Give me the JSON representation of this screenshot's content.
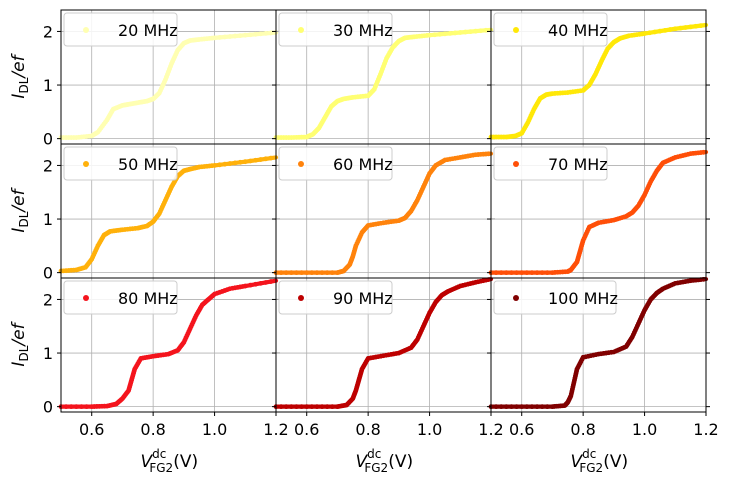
{
  "chart_data": {
    "type": "scatter",
    "layout": "3x3 grid of panels sharing axes",
    "ylabel": "I_DL/ef",
    "ylabel_main": "I",
    "ylabel_sub": "DL",
    "ylabel_tail": "/ef",
    "xlabel_main": "V",
    "xlabel_sup": "dc",
    "xlabel_sub": "FG2",
    "xlabel_tail": "(V)",
    "xlim": [
      0.5,
      1.2
    ],
    "ylim": [
      -0.1,
      2.4
    ],
    "xticks": [
      0.6,
      0.8,
      1.0
    ],
    "xtick_labels": [
      "0.6",
      "0.8",
      "1.0"
    ],
    "xend_label": "1.2",
    "yticks": [
      0,
      1,
      2
    ],
    "ytick_labels": [
      "0",
      "1",
      "2"
    ],
    "grid": true,
    "legend_position": "top-left of each panel",
    "panels": [
      {
        "label": "20 MHz",
        "color": "#ffffb2",
        "x": [
          0.5,
          0.55,
          0.6,
          0.62,
          0.65,
          0.67,
          0.7,
          0.72,
          0.75,
          0.78,
          0.8,
          0.82,
          0.84,
          0.86,
          0.88,
          0.9,
          0.92,
          0.95,
          1.0,
          1.1,
          1.2
        ],
        "y": [
          0.02,
          0.02,
          0.05,
          0.12,
          0.35,
          0.55,
          0.62,
          0.64,
          0.67,
          0.7,
          0.74,
          0.85,
          1.1,
          1.4,
          1.65,
          1.78,
          1.83,
          1.85,
          1.88,
          1.93,
          1.98
        ]
      },
      {
        "label": "30 MHz",
        "color": "#ffff73",
        "x": [
          0.5,
          0.55,
          0.6,
          0.62,
          0.64,
          0.66,
          0.68,
          0.7,
          0.72,
          0.75,
          0.8,
          0.82,
          0.84,
          0.86,
          0.88,
          0.9,
          0.92,
          0.95,
          1.0,
          1.1,
          1.2
        ],
        "y": [
          0.02,
          0.02,
          0.03,
          0.08,
          0.2,
          0.4,
          0.6,
          0.7,
          0.74,
          0.77,
          0.8,
          0.92,
          1.2,
          1.5,
          1.7,
          1.82,
          1.88,
          1.9,
          1.93,
          1.98,
          2.03
        ]
      },
      {
        "label": "40 MHz",
        "color": "#ffe808",
        "x": [
          0.5,
          0.55,
          0.58,
          0.6,
          0.62,
          0.64,
          0.66,
          0.68,
          0.7,
          0.75,
          0.8,
          0.82,
          0.84,
          0.86,
          0.88,
          0.9,
          0.92,
          0.95,
          1.0,
          1.1,
          1.2
        ],
        "y": [
          0.03,
          0.03,
          0.05,
          0.1,
          0.3,
          0.55,
          0.75,
          0.82,
          0.84,
          0.86,
          0.9,
          1.0,
          1.2,
          1.45,
          1.68,
          1.8,
          1.87,
          1.92,
          1.96,
          2.05,
          2.12
        ]
      },
      {
        "label": "50 MHz",
        "color": "#ffb10b",
        "x": [
          0.5,
          0.55,
          0.58,
          0.6,
          0.62,
          0.64,
          0.66,
          0.7,
          0.75,
          0.78,
          0.8,
          0.82,
          0.84,
          0.86,
          0.88,
          0.9,
          0.92,
          0.95,
          1.0,
          1.1,
          1.2
        ],
        "y": [
          0.03,
          0.05,
          0.1,
          0.25,
          0.5,
          0.7,
          0.77,
          0.8,
          0.83,
          0.87,
          0.95,
          1.1,
          1.35,
          1.6,
          1.8,
          1.9,
          1.93,
          1.97,
          2.0,
          2.07,
          2.15
        ]
      },
      {
        "label": "60 MHz",
        "color": "#ff830c",
        "x": [
          0.5,
          0.6,
          0.7,
          0.72,
          0.74,
          0.75,
          0.76,
          0.78,
          0.8,
          0.85,
          0.9,
          0.92,
          0.94,
          0.96,
          0.98,
          1.0,
          1.02,
          1.05,
          1.1,
          1.15,
          1.2
        ],
        "y": [
          0.0,
          0.0,
          0.0,
          0.03,
          0.15,
          0.3,
          0.5,
          0.75,
          0.88,
          0.93,
          0.97,
          1.02,
          1.15,
          1.35,
          1.6,
          1.85,
          2.0,
          2.1,
          2.15,
          2.2,
          2.22
        ]
      },
      {
        "label": "70 MHz",
        "color": "#ff4f08",
        "x": [
          0.5,
          0.6,
          0.7,
          0.75,
          0.76,
          0.78,
          0.79,
          0.8,
          0.82,
          0.85,
          0.9,
          0.94,
          0.96,
          0.98,
          1.0,
          1.02,
          1.04,
          1.06,
          1.1,
          1.15,
          1.2
        ],
        "y": [
          0.0,
          0.0,
          0.0,
          0.02,
          0.05,
          0.2,
          0.4,
          0.6,
          0.85,
          0.93,
          0.98,
          1.05,
          1.12,
          1.25,
          1.45,
          1.7,
          1.9,
          2.05,
          2.15,
          2.22,
          2.25
        ]
      },
      {
        "label": "80 MHz",
        "color": "#f4141d",
        "x": [
          0.5,
          0.6,
          0.65,
          0.68,
          0.7,
          0.72,
          0.73,
          0.74,
          0.76,
          0.8,
          0.85,
          0.88,
          0.9,
          0.92,
          0.94,
          0.96,
          0.98,
          1.0,
          1.05,
          1.1,
          1.2
        ],
        "y": [
          0.0,
          0.0,
          0.01,
          0.05,
          0.15,
          0.3,
          0.5,
          0.7,
          0.9,
          0.94,
          0.98,
          1.05,
          1.2,
          1.45,
          1.7,
          1.9,
          2.0,
          2.1,
          2.2,
          2.25,
          2.35
        ]
      },
      {
        "label": "90 MHz",
        "color": "#bd0000",
        "x": [
          0.5,
          0.6,
          0.7,
          0.73,
          0.75,
          0.76,
          0.77,
          0.78,
          0.8,
          0.85,
          0.9,
          0.94,
          0.96,
          0.98,
          1.0,
          1.02,
          1.04,
          1.06,
          1.1,
          1.15,
          1.2
        ],
        "y": [
          0.0,
          0.0,
          0.0,
          0.03,
          0.15,
          0.3,
          0.5,
          0.7,
          0.9,
          0.95,
          1.0,
          1.1,
          1.25,
          1.5,
          1.75,
          1.95,
          2.08,
          2.15,
          2.25,
          2.32,
          2.38
        ]
      },
      {
        "label": "100 MHz",
        "color": "#800000",
        "x": [
          0.5,
          0.6,
          0.7,
          0.74,
          0.75,
          0.76,
          0.77,
          0.78,
          0.8,
          0.85,
          0.9,
          0.94,
          0.96,
          0.98,
          1.0,
          1.02,
          1.04,
          1.06,
          1.1,
          1.15,
          1.2
        ],
        "y": [
          0.0,
          0.0,
          0.0,
          0.02,
          0.08,
          0.2,
          0.45,
          0.7,
          0.92,
          0.98,
          1.02,
          1.12,
          1.3,
          1.55,
          1.8,
          2.0,
          2.12,
          2.2,
          2.3,
          2.35,
          2.38
        ]
      }
    ]
  }
}
